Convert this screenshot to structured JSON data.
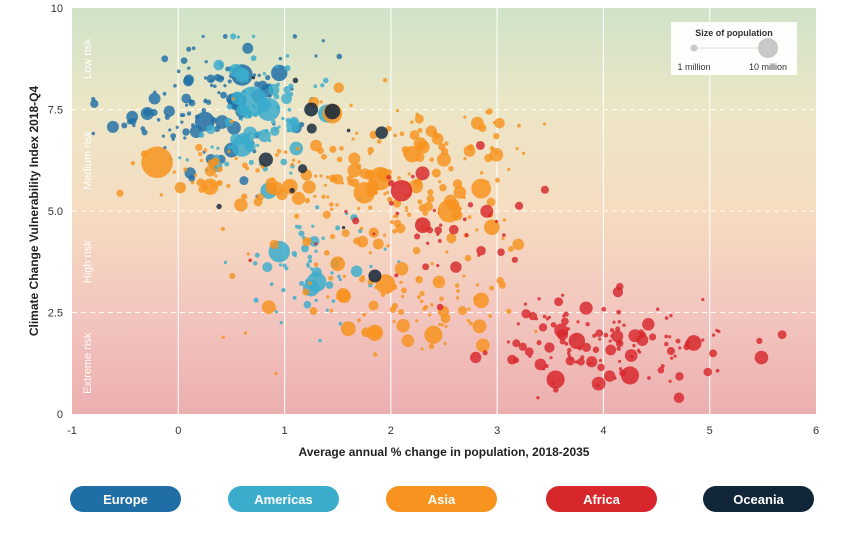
{
  "chart_data": {
    "type": "scatter",
    "xlabel": "Average annual % change in population, 2018-2035",
    "ylabel": "Climate Change Vulnerability Index 2018-Q4",
    "xlim": [
      -1,
      6
    ],
    "ylim": [
      0,
      10
    ],
    "x_ticks": [
      -1,
      0,
      1,
      2,
      3,
      4,
      5,
      6
    ],
    "y_ticks": [
      0,
      2.5,
      5.0,
      7.5,
      10
    ],
    "x_tick_labels": [
      "-1",
      "0",
      "1",
      "2",
      "3",
      "4",
      "5",
      "6"
    ],
    "y_tick_labels": [
      "0",
      "2.5",
      "5.0",
      "7.5",
      "10"
    ],
    "grid": true,
    "bands": [
      {
        "label": "Low risk",
        "from": 7.5,
        "to": 10
      },
      {
        "label": "Medium risk",
        "from": 5.0,
        "to": 7.5
      },
      {
        "label": "High risk",
        "from": 2.5,
        "to": 5.0
      },
      {
        "label": "Extreme risk",
        "from": 0,
        "to": 2.5
      }
    ],
    "size_legend": {
      "title": "Size of population",
      "items": [
        {
          "label": "1 million",
          "population_m": 1
        },
        {
          "label": "10 million",
          "population_m": 10
        }
      ]
    },
    "series": [
      {
        "name": "Europe",
        "color": "#1f6fa6",
        "clusters": [
          {
            "cx": 0.3,
            "cy": 7.6,
            "sx": 0.35,
            "sy": 0.8,
            "n": 80,
            "seed": 11
          },
          {
            "cx": -0.3,
            "cy": 7.3,
            "sx": 0.3,
            "sy": 0.4,
            "n": 18,
            "seed": 12
          },
          {
            "cx": 0.8,
            "cy": 8.3,
            "sx": 0.25,
            "sy": 0.5,
            "n": 20,
            "seed": 13
          }
        ],
        "big": [
          [
            0.6,
            8.35,
            1.6
          ],
          [
            0.25,
            7.2,
            1.4
          ],
          [
            0.55,
            7.7,
            1.2
          ],
          [
            0.95,
            8.4,
            1.0
          ],
          [
            0.5,
            6.5,
            0.8
          ]
        ]
      },
      {
        "name": "Americas",
        "color": "#3aaccc",
        "clusters": [
          {
            "cx": 0.8,
            "cy": 7.6,
            "sx": 0.3,
            "sy": 0.7,
            "n": 60,
            "seed": 21
          },
          {
            "cx": 1.2,
            "cy": 3.7,
            "sx": 0.35,
            "sy": 0.7,
            "n": 55,
            "seed": 22
          },
          {
            "cx": 0.6,
            "cy": 6.5,
            "sx": 0.35,
            "sy": 0.5,
            "n": 20,
            "seed": 23
          }
        ],
        "big": [
          [
            0.7,
            7.7,
            2.6
          ],
          [
            0.85,
            7.5,
            1.8
          ],
          [
            0.6,
            6.6,
            1.6
          ],
          [
            0.95,
            4.0,
            1.6
          ],
          [
            1.3,
            3.25,
            1.4
          ],
          [
            1.4,
            7.4,
            1.2
          ],
          [
            0.85,
            5.5,
            1.0
          ],
          [
            1.25,
            3.1,
            1.0
          ]
        ]
      },
      {
        "name": "Asia",
        "color": "#f7931e",
        "clusters": [
          {
            "cx": 1.9,
            "cy": 5.5,
            "sx": 0.55,
            "sy": 1.0,
            "n": 170,
            "seed": 31
          },
          {
            "cx": 2.2,
            "cy": 2.7,
            "sx": 0.6,
            "sy": 0.6,
            "n": 80,
            "seed": 32
          },
          {
            "cx": 0.3,
            "cy": 5.8,
            "sx": 0.3,
            "sy": 0.5,
            "n": 35,
            "seed": 33
          },
          {
            "cx": 2.6,
            "cy": 7.0,
            "sx": 0.4,
            "sy": 0.4,
            "n": 25,
            "seed": 34
          }
        ],
        "big": [
          [
            -0.2,
            6.2,
            2.8
          ],
          [
            1.9,
            5.8,
            1.8
          ],
          [
            2.55,
            5.0,
            1.8
          ],
          [
            1.75,
            5.45,
            1.6
          ],
          [
            2.85,
            5.55,
            1.4
          ],
          [
            1.45,
            7.4,
            1.4
          ],
          [
            1.95,
            3.2,
            1.4
          ],
          [
            0.3,
            5.6,
            1.0
          ],
          [
            2.2,
            6.4,
            1.0
          ],
          [
            2.4,
            1.95,
            1.2
          ],
          [
            1.85,
            2.0,
            1.0
          ],
          [
            1.05,
            5.6,
            0.9
          ],
          [
            2.85,
            2.8,
            0.9
          ],
          [
            2.95,
            4.6,
            0.9
          ],
          [
            1.6,
            2.1,
            0.8
          ],
          [
            1.5,
            3.7,
            0.8
          ]
        ]
      },
      {
        "name": "Africa",
        "color": "#d7272c",
        "clusters": [
          {
            "cx": 3.9,
            "cy": 1.8,
            "sx": 0.5,
            "sy": 0.5,
            "n": 110,
            "seed": 41
          },
          {
            "cx": 2.5,
            "cy": 4.4,
            "sx": 0.5,
            "sy": 0.9,
            "n": 40,
            "seed": 42
          },
          {
            "cx": 5.1,
            "cy": 1.7,
            "sx": 0.35,
            "sy": 0.45,
            "n": 18,
            "seed": 43
          }
        ],
        "big": [
          [
            2.1,
            5.5,
            1.6
          ],
          [
            3.55,
            0.85,
            1.2
          ],
          [
            4.25,
            0.95,
            1.2
          ],
          [
            3.75,
            1.8,
            1.0
          ],
          [
            4.85,
            1.75,
            0.9
          ],
          [
            2.3,
            4.65,
            0.9
          ]
        ]
      },
      {
        "name": "Oceania",
        "color": "#12263a",
        "clusters": [
          {
            "cx": 1.0,
            "cy": 6.0,
            "sx": 0.5,
            "sy": 1.5,
            "n": 10,
            "seed": 51
          }
        ],
        "big": [
          [
            1.45,
            7.45,
            0.9
          ],
          [
            1.25,
            7.5,
            0.7
          ],
          [
            1.85,
            3.4,
            0.6
          ]
        ]
      }
    ]
  }
}
